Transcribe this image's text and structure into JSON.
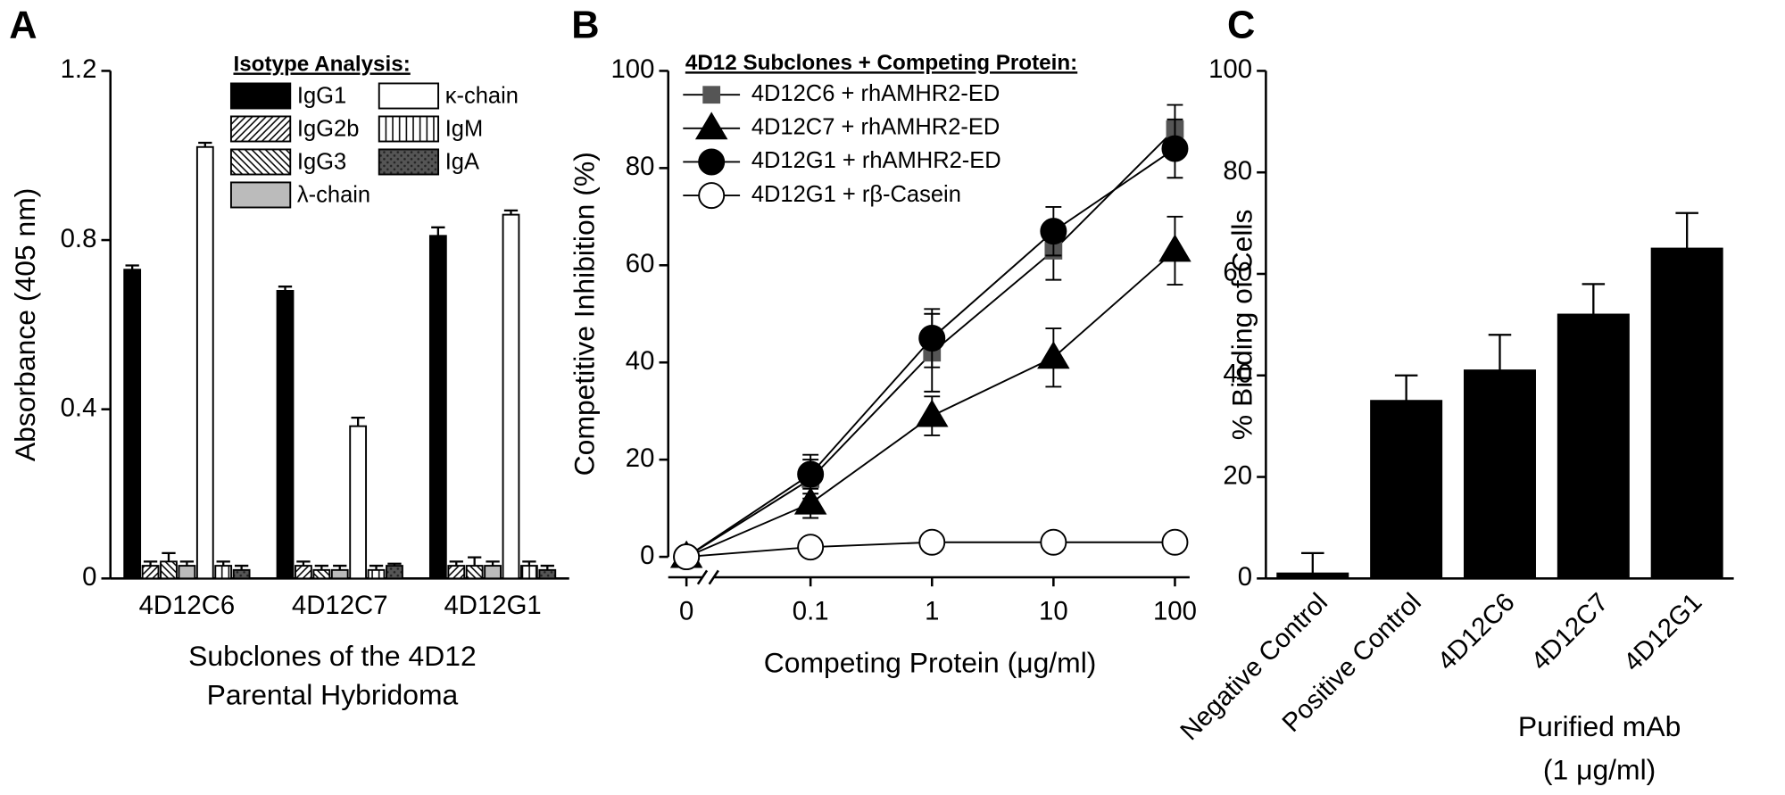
{
  "chart_data": [
    {
      "type": "bar",
      "label": "A",
      "y_label": "Absorbance (405 nm)",
      "x_label": [
        "Subclones of the 4D12",
        "Parental Hybridoma"
      ],
      "legend_title": "Isotype Analysis:",
      "categories": [
        "4D12C6",
        "4D12C7",
        "4D12G1"
      ],
      "series": [
        {
          "name": "IgG1",
          "color": "#000000",
          "pattern": "solid",
          "values": [
            0.73,
            0.68,
            0.81
          ],
          "errors": [
            0.01,
            0.01,
            0.02
          ]
        },
        {
          "name": "κ-chain",
          "color": "#ffffff",
          "pattern": "solid",
          "values": [
            1.02,
            0.36,
            0.86
          ],
          "errors": [
            0.01,
            0.02,
            0.01
          ]
        },
        {
          "name": "IgG2b",
          "color": "#ffffff",
          "pattern": "diagonal",
          "values": [
            0.03,
            0.03,
            0.03
          ],
          "errors": [
            0.01,
            0.01,
            0.01
          ]
        },
        {
          "name": "IgM",
          "color": "#ffffff",
          "pattern": "vertical",
          "values": [
            0.03,
            0.02,
            0.03
          ],
          "errors": [
            0.01,
            0.01,
            0.01
          ]
        },
        {
          "name": "IgG3",
          "color": "#ffffff",
          "pattern": "back-diagonal",
          "values": [
            0.04,
            0.02,
            0.03
          ],
          "errors": [
            0.02,
            0.01,
            0.02
          ]
        },
        {
          "name": "IgA",
          "color": "#555555",
          "pattern": "dots",
          "values": [
            0.02,
            0.03,
            0.02
          ],
          "errors": [
            0.01,
            0.005,
            0.01
          ]
        },
        {
          "name": "λ-chain",
          "color": "#bbbbbb",
          "pattern": "solid",
          "values": [
            0.03,
            0.02,
            0.03
          ],
          "errors": [
            0.01,
            0.01,
            0.01
          ]
        }
      ],
      "ylim": [
        0,
        1.2
      ],
      "yticks": [
        0,
        0.4,
        0.8,
        1.2
      ]
    },
    {
      "type": "line",
      "label": "B",
      "y_label": "Competitive Inhibition (%)",
      "x_label": "Competing Protein (μg/ml)",
      "legend_title": "4D12 Subclones + Competing Protein:",
      "categories": [
        "0",
        "0.1",
        "1",
        "10",
        "100"
      ],
      "series": [
        {
          "name": "4D12C6 + rhAMHR2-ED",
          "color": "#555555",
          "marker": "square",
          "values": [
            0,
            16,
            42,
            63,
            88
          ],
          "errors": [
            1,
            4,
            8,
            6,
            5
          ]
        },
        {
          "name": "4D12C7 + rhAMHR2-ED",
          "color": "#000000",
          "marker": "triangle",
          "values": [
            0,
            11,
            29,
            41,
            63
          ],
          "errors": [
            2,
            3,
            4,
            6,
            7
          ]
        },
        {
          "name": "4D12G1 + rhAMHR2-ED",
          "color": "#000000",
          "marker": "circle",
          "values": [
            0,
            17,
            45,
            67,
            84
          ],
          "errors": [
            1,
            4,
            6,
            5,
            6
          ]
        },
        {
          "name": "4D12G1 + rβ-Casein",
          "color": "#ffffff",
          "marker": "circle",
          "values": [
            0,
            2,
            3,
            3,
            3
          ],
          "errors": [
            1,
            2,
            1,
            1,
            1
          ]
        }
      ],
      "ylim": [
        0,
        100
      ],
      "yticks": [
        0,
        20,
        40,
        60,
        80,
        100
      ]
    },
    {
      "type": "bar",
      "label": "C",
      "y_label": "% Binding of Cells",
      "x_label": [
        "Purified mAb",
        "(1 μg/ml)"
      ],
      "categories": [
        "Negative Control",
        "Positive Control",
        "4D12C6",
        "4D12C7",
        "4D12G1"
      ],
      "series": [
        {
          "color": "#000000",
          "pattern": "solid",
          "values": [
            1,
            35,
            41,
            52,
            65
          ],
          "errors": [
            4,
            5,
            7,
            6,
            7
          ]
        }
      ],
      "ylim": [
        0,
        100
      ],
      "yticks": [
        0,
        20,
        40,
        60,
        80,
        100
      ]
    }
  ]
}
